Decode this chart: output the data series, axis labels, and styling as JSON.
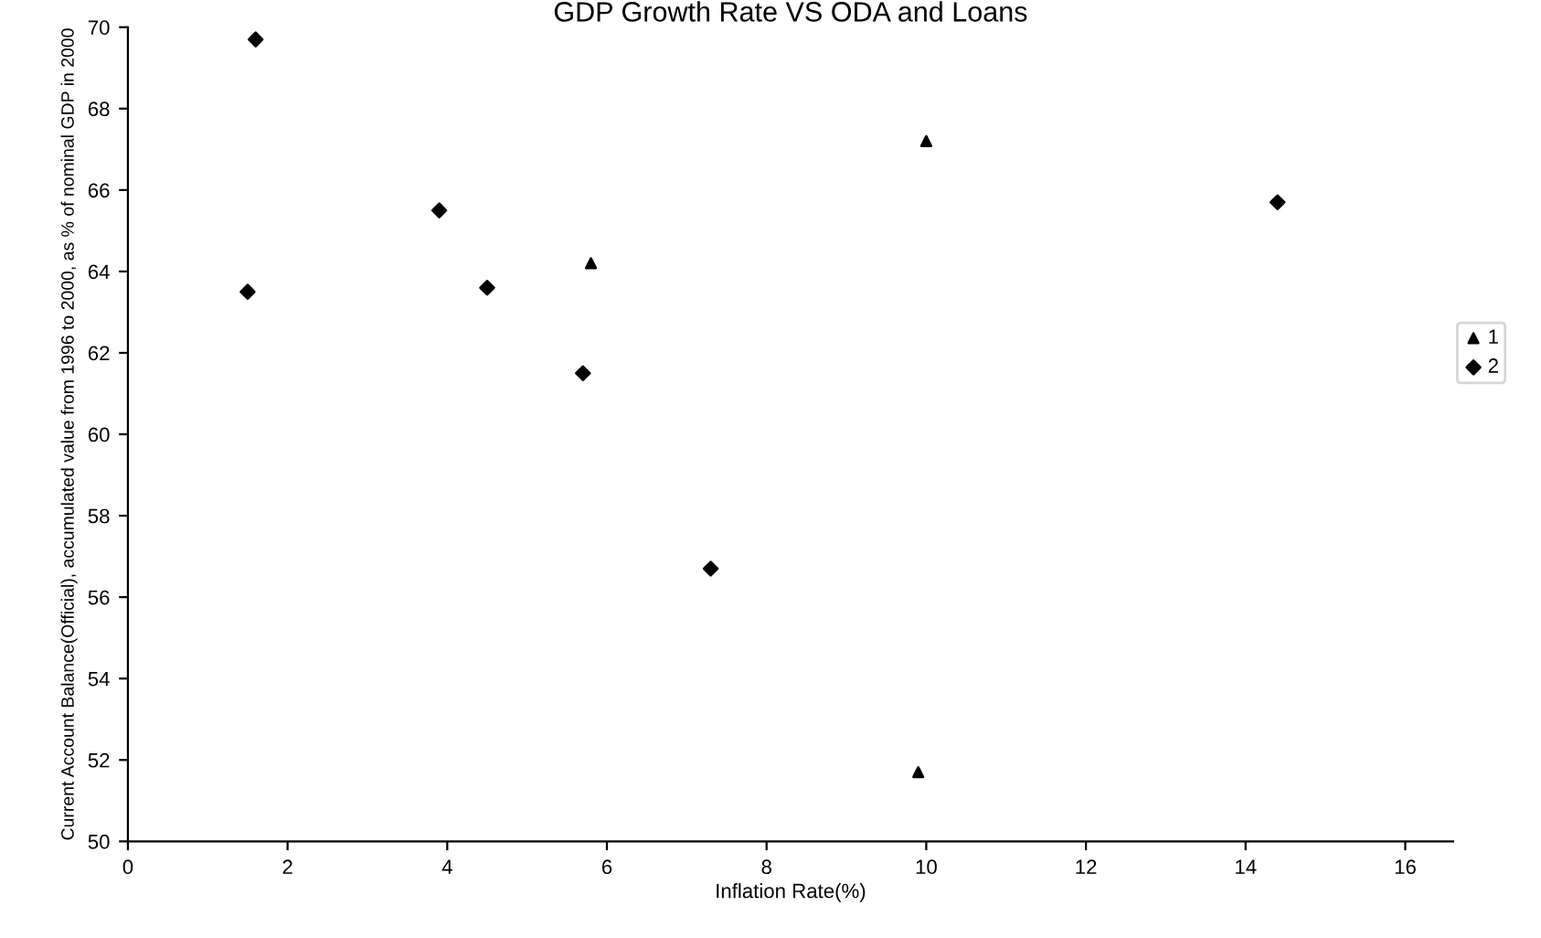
{
  "chart_data": {
    "type": "scatter",
    "title": "GDP Growth Rate VS ODA and Loans",
    "xlabel": "Inflation Rate(%)",
    "ylabel": "Current Account Balance(Official), accumulated value from 1996 to 2000, as % of nominal GDP in 2000",
    "series": [
      {
        "name": "1",
        "color": "#000000",
        "marker": "triangle",
        "x": [
          5.8,
          10.0,
          9.9
        ],
        "values": [
          64.2,
          67.2,
          51.7
        ]
      },
      {
        "name": "2",
        "color": "#000000",
        "marker": "diamond",
        "x": [
          1.6,
          1.5,
          3.9,
          4.5,
          5.7,
          7.3,
          14.4
        ],
        "values": [
          69.7,
          63.5,
          65.5,
          63.6,
          61.5,
          56.7,
          65.7
        ]
      }
    ],
    "xlim": [
      0,
      16.6
    ],
    "xticks": [
      0,
      2,
      4,
      6,
      8,
      10,
      12,
      14,
      16
    ],
    "ylim": [
      50,
      70
    ],
    "yticks": [
      50,
      52,
      54,
      56,
      58,
      60,
      62,
      64,
      66,
      68,
      70
    ],
    "grid": false,
    "legend": "right"
  }
}
